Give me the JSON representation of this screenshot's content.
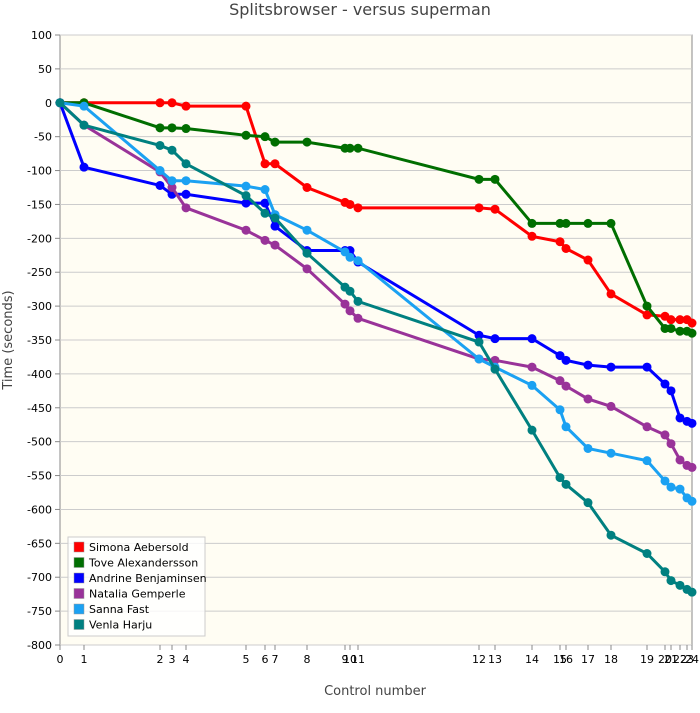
{
  "chart_data": {
    "type": "line",
    "title": "Splitsbrowser - versus superman",
    "x_label": "Control number",
    "y_label": "Time (seconds)",
    "x": [
      0,
      24,
      100,
      112,
      126,
      186,
      205,
      215,
      247,
      285,
      290,
      298,
      419,
      435,
      472,
      500,
      506,
      528,
      551,
      587,
      605,
      611,
      620,
      627,
      632
    ],
    "xlim": [
      0,
      632
    ],
    "xticks": [
      {
        "value": 0,
        "label": "0"
      },
      {
        "value": 24,
        "label": "1"
      },
      {
        "value": 100,
        "label": "2"
      },
      {
        "value": 112,
        "label": "3"
      },
      {
        "value": 126,
        "label": "4"
      },
      {
        "value": 186,
        "label": "5"
      },
      {
        "value": 205,
        "label": "6"
      },
      {
        "value": 215,
        "label": "7"
      },
      {
        "value": 247,
        "label": "8"
      },
      {
        "value": 285,
        "label": "9"
      },
      {
        "value": 290,
        "label": "10"
      },
      {
        "value": 298,
        "label": "11"
      },
      {
        "value": 419,
        "label": "12"
      },
      {
        "value": 435,
        "label": "13"
      },
      {
        "value": 472,
        "label": "14"
      },
      {
        "value": 500,
        "label": "15"
      },
      {
        "value": 506,
        "label": "16"
      },
      {
        "value": 528,
        "label": "17"
      },
      {
        "value": 551,
        "label": "18"
      },
      {
        "value": 587,
        "label": "19"
      },
      {
        "value": 605,
        "label": "20"
      },
      {
        "value": 611,
        "label": "21"
      },
      {
        "value": 620,
        "label": "22"
      },
      {
        "value": 627,
        "label": "23"
      },
      {
        "value": 632,
        "label": "24"
      }
    ],
    "ylim": [
      -800,
      100
    ],
    "yticks": [
      100,
      50,
      0,
      -50,
      -100,
      -150,
      -200,
      -250,
      -300,
      -350,
      -400,
      -450,
      -500,
      -550,
      -600,
      -650,
      -700,
      -750,
      -800
    ],
    "grid": true,
    "legend": "lower left",
    "series": [
      {
        "name": "Simona Aebersold",
        "color": "#ff0000",
        "values": [
          0,
          0,
          0,
          0,
          -5,
          -5,
          -90,
          -90,
          -125,
          -147,
          -150,
          -155,
          -155,
          -157,
          -197,
          -205,
          -215,
          -232,
          -282,
          -313,
          -315,
          -320,
          -320,
          -320,
          -325
        ]
      },
      {
        "name": "Tove Alexandersson",
        "color": "#006e00",
        "values": [
          0,
          0,
          -37,
          -37,
          -38,
          -48,
          -50,
          -58,
          -58,
          -67,
          -67,
          -67,
          -113,
          -113,
          -178,
          -178,
          -178,
          -178,
          -178,
          -300,
          -333,
          -333,
          -337,
          -337,
          -340
        ]
      },
      {
        "name": "Andrine Benjaminsen",
        "color": "#0000ff",
        "values": [
          0,
          -95,
          -122,
          -135,
          -135,
          -148,
          -148,
          -182,
          -218,
          -218,
          -218,
          -235,
          -343,
          -348,
          -348,
          -373,
          -380,
          -387,
          -390,
          -390,
          -415,
          -425,
          -465,
          -470,
          -473
        ]
      },
      {
        "name": "Natalia Gemperle",
        "color": "#993399",
        "values": [
          0,
          -33,
          -102,
          -125,
          -155,
          -188,
          -203,
          -210,
          -245,
          -297,
          -307,
          -318,
          -378,
          -380,
          -390,
          -410,
          -418,
          -437,
          -448,
          -478,
          -490,
          -503,
          -527,
          -535,
          -538
        ]
      },
      {
        "name": "Sanna Fast",
        "color": "#1ba1f2",
        "values": [
          0,
          -5,
          -100,
          -115,
          -115,
          -123,
          -128,
          -165,
          -188,
          -220,
          -228,
          -233,
          -378,
          -390,
          -417,
          -453,
          -478,
          -510,
          -517,
          -528,
          -558,
          -567,
          -570,
          -583,
          -588
        ]
      },
      {
        "name": "Venla Harju",
        "color": "#008080",
        "values": [
          0,
          -33,
          -63,
          -70,
          -90,
          -137,
          -163,
          -170,
          -222,
          -272,
          -278,
          -293,
          -353,
          -393,
          -483,
          -553,
          -563,
          -590,
          -638,
          -665,
          -692,
          -705,
          -712,
          -718,
          -722
        ]
      }
    ]
  }
}
